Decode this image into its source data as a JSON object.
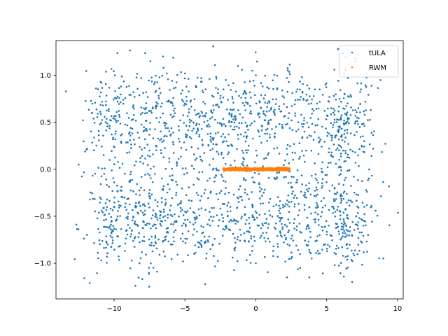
{
  "chart_data": {
    "type": "scatter",
    "title": "",
    "xlabel": "",
    "ylabel": "",
    "xlim": [
      -14.1,
      10.4
    ],
    "ylim": [
      -1.38,
      1.37
    ],
    "xticks": [
      -10,
      -5,
      0,
      5,
      10
    ],
    "xtick_labels": [
      "−10",
      "−5",
      "0",
      "5",
      "10"
    ],
    "yticks": [
      -1.0,
      -0.5,
      0.0,
      0.5,
      1.0
    ],
    "ytick_labels": [
      "−1.0",
      "−0.5",
      "0.0",
      "0.5",
      "1.0"
    ],
    "grid": false,
    "legend_position": "top-right",
    "series": [
      {
        "name": "tULA",
        "color": "#1f77b4",
        "point_count": 2000,
        "description": "dense cloud; x mostly in [-10, 7], y in [-1.2, 1.2]",
        "sample_points": [
          [
            -3.0,
            1.31
          ],
          [
            -12.1,
            -1.16
          ],
          [
            -8.5,
            -1.24
          ],
          [
            -10.5,
            -0.93
          ],
          [
            -12.5,
            0.05
          ],
          [
            8.8,
            0.95
          ],
          [
            9.0,
            -0.95
          ],
          [
            7.0,
            1.15
          ],
          [
            6.8,
            -1.2
          ],
          [
            5.8,
            1.28
          ],
          [
            -6.0,
            -0.8
          ],
          [
            -5.0,
            0.7
          ],
          [
            0.0,
            1.0
          ],
          [
            0.0,
            -1.0
          ],
          [
            3.0,
            0.5
          ],
          [
            -2.0,
            -0.5
          ],
          [
            4.5,
            -0.7
          ],
          [
            -8.0,
            0.6
          ],
          [
            1.5,
            0.85
          ],
          [
            -3.5,
            -0.95
          ]
        ]
      },
      {
        "name": "RWM",
        "color": "#ff7f0e",
        "point_count": 600,
        "description": "narrow band; x in [-2.3, 2.4], y in [-0.03, 0.03]",
        "sample_points": [
          [
            -2.2,
            0.0
          ],
          [
            -1.5,
            0.01
          ],
          [
            -1.0,
            -0.01
          ],
          [
            -0.5,
            0.0
          ],
          [
            0.0,
            0.01
          ],
          [
            0.5,
            -0.01
          ],
          [
            1.0,
            0.0
          ],
          [
            1.5,
            0.01
          ],
          [
            2.0,
            -0.01
          ],
          [
            2.3,
            0.0
          ]
        ]
      }
    ]
  }
}
